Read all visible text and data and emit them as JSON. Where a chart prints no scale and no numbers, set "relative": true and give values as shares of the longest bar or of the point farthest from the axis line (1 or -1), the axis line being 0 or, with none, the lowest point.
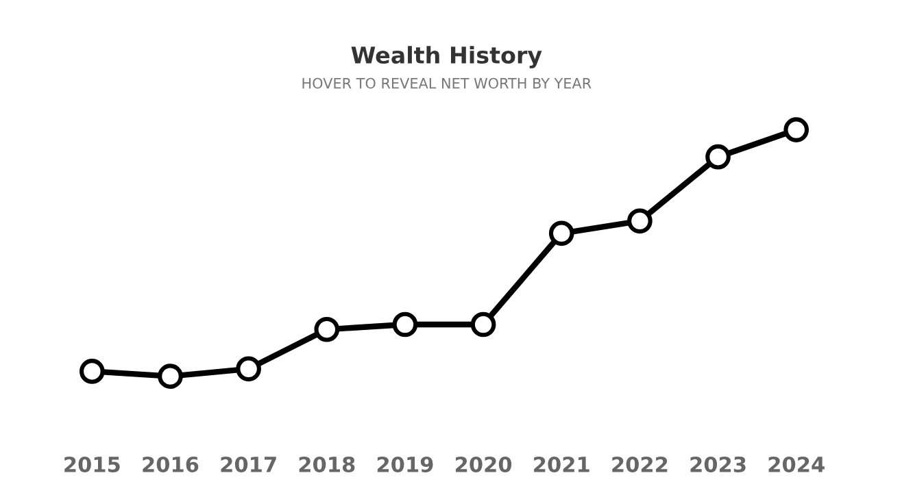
{
  "chart_data": {
    "type": "line",
    "title": "Wealth History",
    "subtitle": "HOVER TO REVEAL NET WORTH BY YEAR",
    "categories": [
      "2015",
      "2016",
      "2017",
      "2018",
      "2019",
      "2020",
      "2021",
      "2022",
      "2023",
      "2024"
    ],
    "series": [
      {
        "color": "#000000",
        "values": [
          0.02,
          0,
          0.03,
          0.19,
          0.21,
          0.21,
          0.58,
          0.63,
          0.89,
          1
        ]
      }
    ],
    "relative": true,
    "marker": "circle",
    "line_style": "solid",
    "grid": false,
    "tick_labels": "x"
  }
}
